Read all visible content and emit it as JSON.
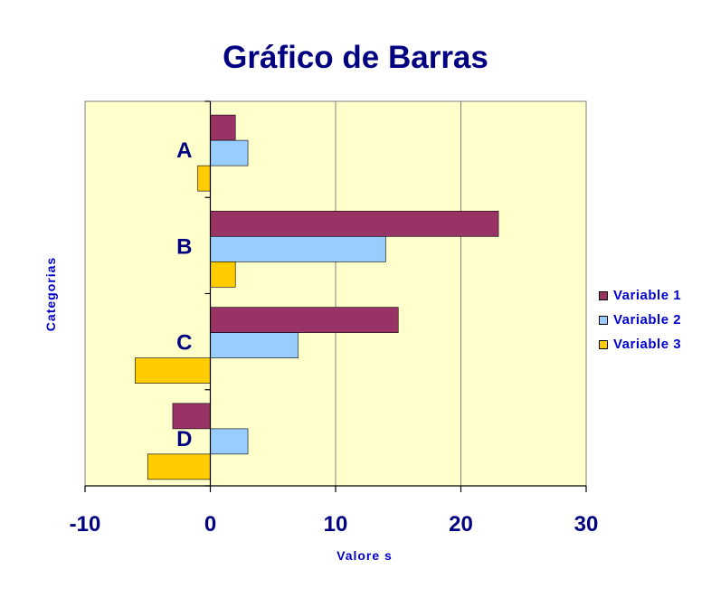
{
  "chart_data": {
    "type": "bar",
    "orientation": "horizontal",
    "title": "Gráfico de Barras",
    "xlabel": "Valore s",
    "ylabel": "Categorias",
    "categories": [
      "A",
      "B",
      "C",
      "D"
    ],
    "series": [
      {
        "name": "Variable 1",
        "values": [
          2,
          23,
          15,
          -3
        ],
        "color": "#993366"
      },
      {
        "name": "Variable 2",
        "values": [
          3,
          14,
          7,
          3
        ],
        "color": "#99ccff"
      },
      {
        "name": "Variable 3",
        "values": [
          -1,
          2,
          -6,
          -5
        ],
        "color": "#ffcc00"
      }
    ],
    "xlim": [
      -10,
      30
    ],
    "xticks": [
      -10,
      0,
      10,
      20,
      30
    ],
    "grid": true,
    "legend_position": "right",
    "plot_background": "#ffffcc"
  }
}
